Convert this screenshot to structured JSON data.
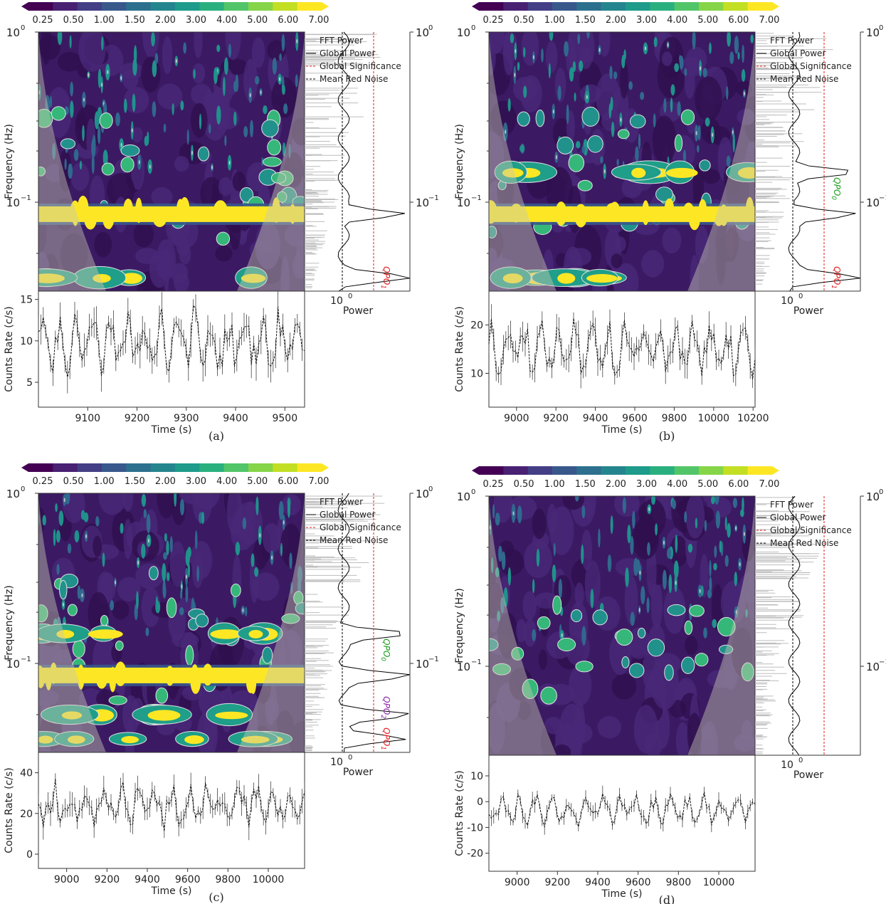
{
  "colorbar": {
    "ticks": [
      "0.25",
      "0.50",
      "1.00",
      "1.50",
      "2.00",
      "3.00",
      "4.00",
      "5.00",
      "6.00",
      "7.00"
    ],
    "colors": [
      "#440154",
      "#482173",
      "#433e85",
      "#38588c",
      "#2d708e",
      "#25858e",
      "#1e9b8a",
      "#2ab07f",
      "#52c569",
      "#86d549",
      "#c2df23",
      "#fde725"
    ]
  },
  "panel_texts": {
    "freq_ylabel": "Frequency (Hz)",
    "power_xlabel": "Power",
    "power_tick": "10",
    "power_tick_exp": "0",
    "rate_ylabel": "Counts Rate (c/s)",
    "time_xlabel": "Time (s)",
    "freq_tick_top": "10",
    "freq_tick_top_exp": "0",
    "freq_tick_mid": "10",
    "freq_tick_mid_exp": "−1",
    "legend": [
      "FFT Power",
      "Global Power",
      "Global Significance",
      "Mean Red Noise"
    ]
  },
  "chart_data": [
    {
      "id": "a",
      "type": "wavelet",
      "caption": "(a)",
      "freq_range_hz": [
        0.03,
        1.0
      ],
      "time_range_s": [
        9000,
        9540
      ],
      "time_ticks": [
        9100,
        9200,
        9300,
        9400,
        9500
      ],
      "rate_ticks": [
        5,
        10,
        15
      ],
      "rate_range": [
        2,
        16
      ],
      "rate_mean": 10,
      "rate_amplitude": 4,
      "features_hz": [
        0.085,
        0.036
      ],
      "qpo_labels": [
        {
          "text": "QPO",
          "sub": "1",
          "freq_hz": 0.036,
          "color": "#e31a1c"
        }
      ]
    },
    {
      "id": "b",
      "type": "wavelet",
      "caption": "(b)",
      "freq_range_hz": [
        0.03,
        1.0
      ],
      "time_range_s": [
        8860,
        10210
      ],
      "time_ticks": [
        9000,
        9200,
        9400,
        9600,
        9800,
        10000,
        10200
      ],
      "rate_ticks": [
        10,
        20
      ],
      "rate_range": [
        3,
        27
      ],
      "rate_mean": 15,
      "rate_amplitude": 6,
      "features_hz": [
        0.085,
        0.036,
        0.15
      ],
      "qpo_labels": [
        {
          "text": "QPO",
          "sub": "0",
          "freq_hz": 0.12,
          "color": "#1a9e1a"
        },
        {
          "text": "QPO",
          "sub": "1",
          "freq_hz": 0.036,
          "color": "#e31a1c"
        }
      ]
    },
    {
      "id": "c",
      "type": "wavelet",
      "caption": "(c)",
      "freq_range_hz": [
        0.03,
        1.0
      ],
      "time_range_s": [
        8860,
        10180
      ],
      "time_ticks": [
        9000,
        9200,
        9400,
        9600,
        9800,
        10000
      ],
      "rate_ticks": [
        0,
        20,
        40
      ],
      "rate_range": [
        -7,
        50
      ],
      "rate_mean": 24,
      "rate_amplitude": 12,
      "features_hz": [
        0.085,
        0.036,
        0.05,
        0.15
      ],
      "qpo_labels": [
        {
          "text": "QPO",
          "sub": "0",
          "freq_hz": 0.12,
          "color": "#1a9e1a"
        },
        {
          "text": "QPO",
          "sub": "2",
          "freq_hz": 0.055,
          "color": "#8e24aa"
        },
        {
          "text": "QPO",
          "sub": "1",
          "freq_hz": 0.036,
          "color": "#e31a1c"
        }
      ]
    },
    {
      "id": "d",
      "type": "wavelet",
      "caption": "(d)",
      "freq_range_hz": [
        0.03,
        1.0
      ],
      "time_range_s": [
        8860,
        10180
      ],
      "time_ticks": [
        9000,
        9200,
        9400,
        9600,
        9800,
        10000
      ],
      "rate_ticks": [
        -20,
        -10,
        0,
        10
      ],
      "rate_range": [
        -27,
        18
      ],
      "rate_mean": -3,
      "rate_amplitude": 6,
      "features_hz": [],
      "qpo_labels": []
    }
  ]
}
